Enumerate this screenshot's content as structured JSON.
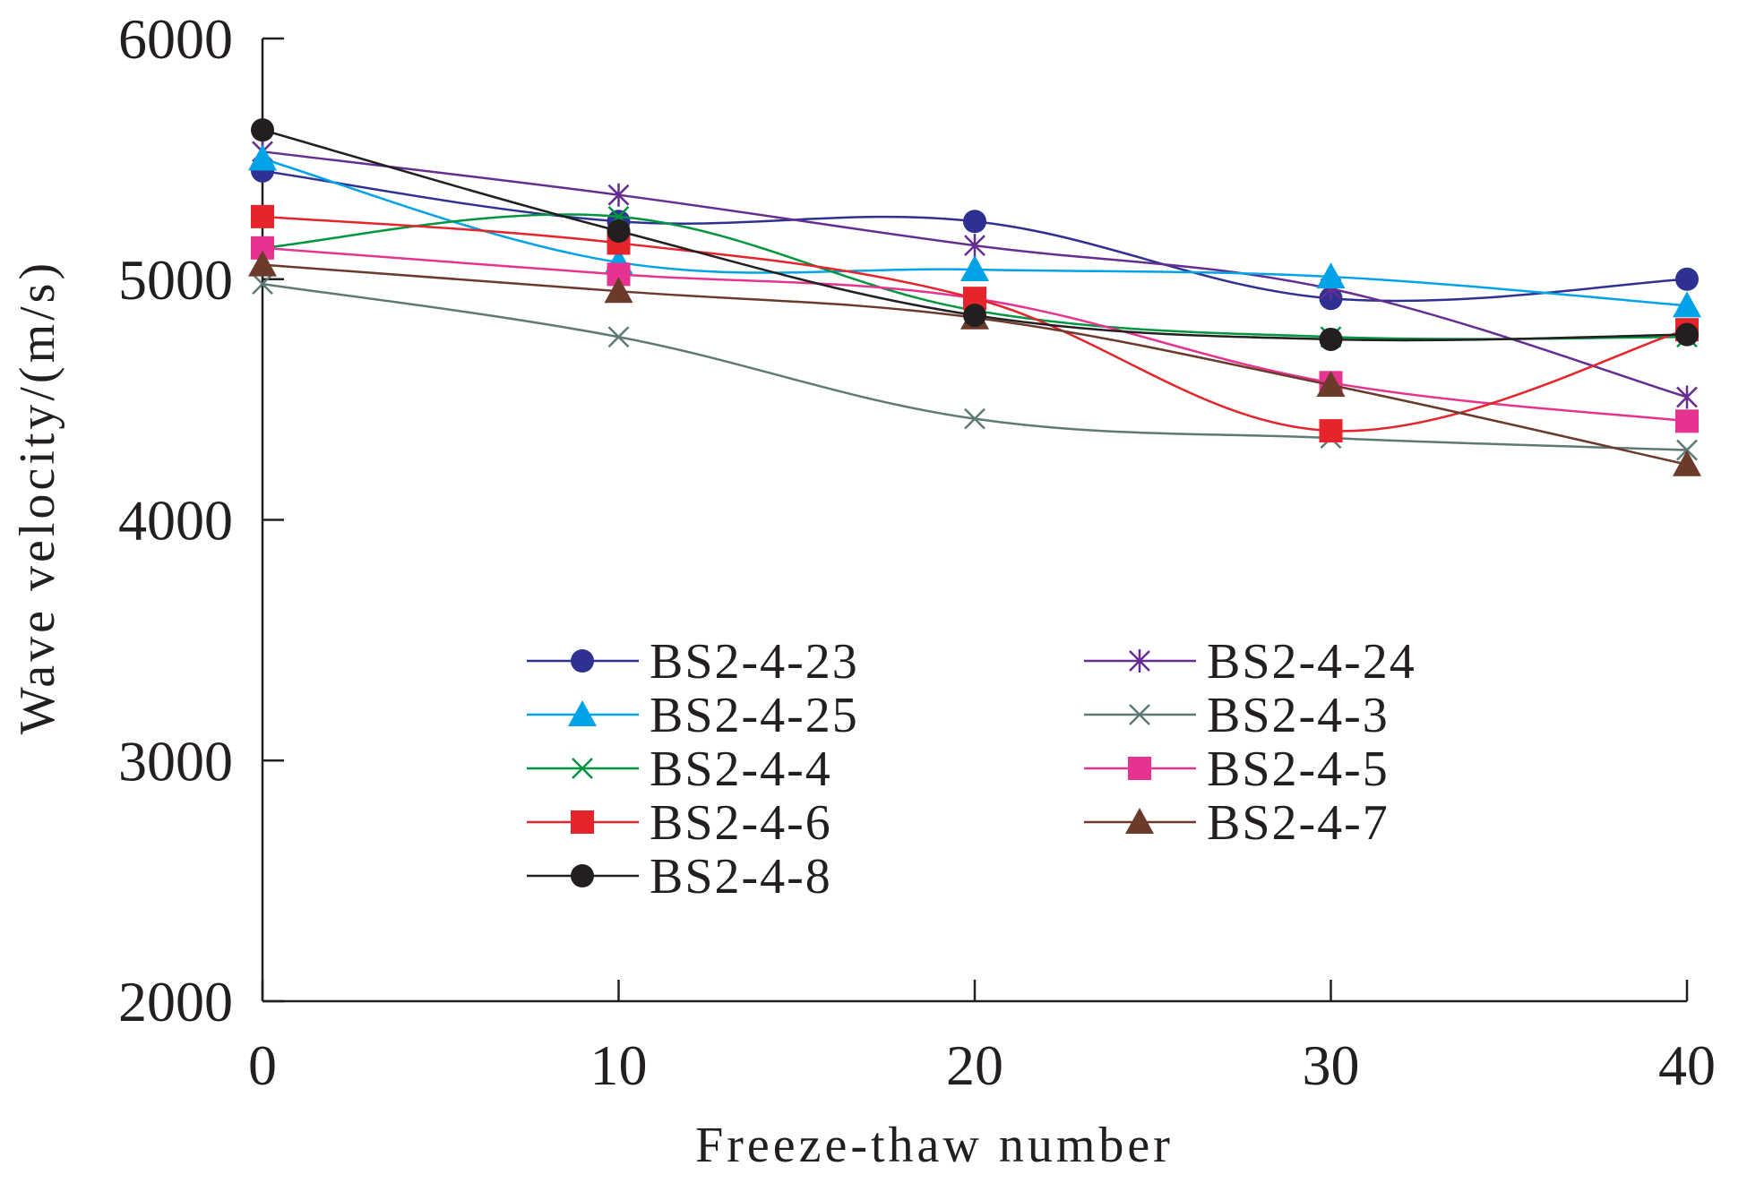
{
  "chart_data": {
    "type": "line",
    "title": "",
    "xlabel": "Freeze-thaw number",
    "ylabel": "Wave velocity/(m/s)",
    "xlim": [
      0,
      40
    ],
    "ylim": [
      2000,
      6000
    ],
    "xticks": [
      0,
      10,
      20,
      30,
      40
    ],
    "yticks": [
      2000,
      3000,
      4000,
      5000,
      6000
    ],
    "x": [
      0,
      10,
      20,
      30,
      40
    ],
    "grid": false,
    "legend_position": "bottom-center",
    "series": [
      {
        "name": "BS2-4-23",
        "color": "#2e3192",
        "marker": "circle",
        "values": [
          5450,
          5240,
          5240,
          4920,
          5000
        ]
      },
      {
        "name": "BS2-4-24",
        "color": "#662d91",
        "marker": "star",
        "values": [
          5530,
          5350,
          5140,
          4960,
          4510
        ]
      },
      {
        "name": "BS2-4-25",
        "color": "#00a2e8",
        "marker": "triangle",
        "values": [
          5500,
          5070,
          5040,
          5010,
          4890
        ]
      },
      {
        "name": "BS2-4-3",
        "color": "#5e7a76",
        "marker": "x",
        "values": [
          4980,
          4760,
          4420,
          4340,
          4290
        ]
      },
      {
        "name": "BS2-4-4",
        "color": "#00953f",
        "marker": "x",
        "values": [
          5130,
          5260,
          4870,
          4760,
          4760
        ]
      },
      {
        "name": "BS2-4-5",
        "color": "#e5338f",
        "marker": "square",
        "values": [
          5130,
          5020,
          4920,
          4570,
          4410
        ]
      },
      {
        "name": "BS2-4-6",
        "color": "#e5242b",
        "marker": "square",
        "values": [
          5260,
          5150,
          4920,
          4370,
          4790
        ]
      },
      {
        "name": "BS2-4-7",
        "color": "#6b3a2a",
        "marker": "triangle",
        "values": [
          5060,
          4950,
          4840,
          4560,
          4230
        ]
      },
      {
        "name": "BS2-4-8",
        "color": "#231f20",
        "marker": "circle",
        "values": [
          5620,
          5200,
          4850,
          4750,
          4770
        ]
      }
    ]
  }
}
